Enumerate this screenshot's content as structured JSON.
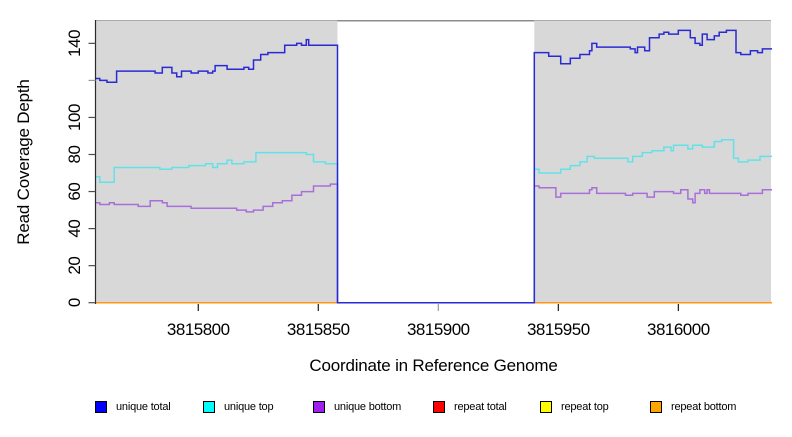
{
  "chart_data": {
    "type": "line",
    "line_style": "step",
    "title": "",
    "xlabel": "Coordinate in Reference Genome",
    "ylabel": "Read Coverage Depth",
    "xlim": [
      3815757,
      3816039
    ],
    "ylim": [
      0,
      153
    ],
    "grid": "off",
    "background": {
      "panel": "#d8d8d8",
      "outer": "#ffffff",
      "panel_top_border": "#aaaaaa",
      "axis_color": "#2b2b2b"
    },
    "no_data_region": {
      "x_start": 3815858,
      "x_end": 3815940,
      "fill": "#ffffff",
      "top_border_color": "#8c8c8c"
    },
    "x_ticks": [
      {
        "value": 3815800,
        "label": "3815800",
        "tick_color": "#1a1a1a"
      },
      {
        "value": 3815850,
        "label": "3815850",
        "tick_color": "#1a1a1a"
      },
      {
        "value": 3815900,
        "label": "3815900",
        "tick_color": "#9a9a9a"
      },
      {
        "value": 3815950,
        "label": "3815950",
        "tick_color": "#1a1a1a"
      },
      {
        "value": 3816000,
        "label": "3816000",
        "tick_color": "#1a1a1a"
      }
    ],
    "y_ticks": [
      {
        "value": 0,
        "label": "0",
        "tick_color": "#4d4d4d"
      },
      {
        "value": 20,
        "label": "20",
        "tick_color": "#4d4d4d"
      },
      {
        "value": 40,
        "label": "40",
        "tick_color": "#4d4d4d"
      },
      {
        "value": 60,
        "label": "60",
        "tick_color": "#4d4d4d"
      },
      {
        "value": 80,
        "label": "80",
        "tick_color": "#4d4d4d"
      },
      {
        "value": 100,
        "label": "100",
        "tick_color": "#4d4d4d"
      },
      {
        "value": 120,
        "label": "",
        "tick_color": "#9a9a9a"
      },
      {
        "value": 140,
        "label": "140",
        "tick_color": "#4d4d4d"
      }
    ],
    "series": [
      {
        "name": "repeat total",
        "key": "repeat-total",
        "line_color": "#ff0000",
        "layer": "under",
        "points": [
          [
            3815757,
            0
          ],
          [
            3816039,
            0
          ]
        ]
      },
      {
        "name": "repeat top",
        "key": "repeat-top",
        "line_color": "#ffff00",
        "layer": "under",
        "points": [
          [
            3815757,
            0
          ],
          [
            3816039,
            0
          ]
        ]
      },
      {
        "name": "repeat bottom",
        "key": "repeat-bottom",
        "line_color": "#ff9715",
        "layer": "under",
        "points": [
          [
            3815757,
            0
          ],
          [
            3816039,
            0
          ]
        ]
      },
      {
        "name": "unique top",
        "key": "unique-top",
        "line_color": "#62e2e8",
        "layer": "over",
        "points": [
          [
            3815757,
            68
          ],
          [
            3815759,
            65
          ],
          [
            3815765,
            73
          ],
          [
            3815784,
            72
          ],
          [
            3815789,
            73
          ],
          [
            3815796,
            74
          ],
          [
            3815803,
            75
          ],
          [
            3815806,
            73
          ],
          [
            3815808,
            75
          ],
          [
            3815812,
            77
          ],
          [
            3815814,
            75
          ],
          [
            3815819,
            76
          ],
          [
            3815824,
            81
          ],
          [
            3815845,
            80
          ],
          [
            3815848,
            76
          ],
          [
            3815853,
            75
          ],
          [
            3815858,
            0
          ],
          [
            3815940,
            72
          ],
          [
            3815942,
            70
          ],
          [
            3815951,
            72
          ],
          [
            3815955,
            74
          ],
          [
            3815959,
            76
          ],
          [
            3815962,
            79
          ],
          [
            3815965,
            78
          ],
          [
            3815979,
            76
          ],
          [
            3815981,
            79
          ],
          [
            3815985,
            81
          ],
          [
            3815989,
            82
          ],
          [
            3815994,
            84
          ],
          [
            3815997,
            82
          ],
          [
            3815998,
            85
          ],
          [
            3816004,
            83
          ],
          [
            3816006,
            85
          ],
          [
            3816010,
            84
          ],
          [
            3816015,
            87
          ],
          [
            3816018,
            88
          ],
          [
            3816023,
            78
          ],
          [
            3816025,
            76
          ],
          [
            3816029,
            77
          ],
          [
            3816034,
            79
          ],
          [
            3816039,
            79
          ]
        ]
      },
      {
        "name": "unique bottom",
        "key": "unique-bottom",
        "line_color": "#a96fd9",
        "layer": "over",
        "points": [
          [
            3815757,
            54
          ],
          [
            3815759,
            53
          ],
          [
            3815763,
            54
          ],
          [
            3815765,
            53
          ],
          [
            3815775,
            52
          ],
          [
            3815780,
            55
          ],
          [
            3815785,
            54
          ],
          [
            3815787,
            52
          ],
          [
            3815797,
            51
          ],
          [
            3815816,
            50
          ],
          [
            3815820,
            49
          ],
          [
            3815823,
            50
          ],
          [
            3815827,
            52
          ],
          [
            3815831,
            54
          ],
          [
            3815835,
            55
          ],
          [
            3815839,
            58
          ],
          [
            3815843,
            60
          ],
          [
            3815848,
            63
          ],
          [
            3815855,
            64
          ],
          [
            3815858,
            0
          ],
          [
            3815940,
            63
          ],
          [
            3815942,
            62
          ],
          [
            3815949,
            57
          ],
          [
            3815951,
            59
          ],
          [
            3815963,
            61
          ],
          [
            3815964,
            62
          ],
          [
            3815966,
            59
          ],
          [
            3815978,
            58
          ],
          [
            3815981,
            59
          ],
          [
            3815987,
            57
          ],
          [
            3815990,
            60
          ],
          [
            3815998,
            59
          ],
          [
            3816001,
            61
          ],
          [
            3816004,
            56
          ],
          [
            3816006,
            54
          ],
          [
            3816007,
            59
          ],
          [
            3816009,
            61
          ],
          [
            3816011,
            59
          ],
          [
            3816012,
            61
          ],
          [
            3816013,
            59
          ],
          [
            3816026,
            58
          ],
          [
            3816029,
            59
          ],
          [
            3816035,
            61
          ],
          [
            3816039,
            61
          ]
        ]
      },
      {
        "name": "unique total",
        "key": "unique-total",
        "line_color": "#2a2ad4",
        "layer": "over",
        "points": [
          [
            3815757,
            121
          ],
          [
            3815759,
            120
          ],
          [
            3815762,
            119
          ],
          [
            3815766,
            125
          ],
          [
            3815782,
            124
          ],
          [
            3815785,
            127
          ],
          [
            3815789,
            124
          ],
          [
            3815791,
            122
          ],
          [
            3815793,
            125
          ],
          [
            3815797,
            124
          ],
          [
            3815800,
            125
          ],
          [
            3815804,
            124
          ],
          [
            3815806,
            125
          ],
          [
            3815807,
            128
          ],
          [
            3815812,
            126
          ],
          [
            3815819,
            127
          ],
          [
            3815821,
            126
          ],
          [
            3815823,
            131
          ],
          [
            3815826,
            134
          ],
          [
            3815829,
            135
          ],
          [
            3815836,
            139
          ],
          [
            3815841,
            140
          ],
          [
            3815843,
            139
          ],
          [
            3815845,
            142
          ],
          [
            3815846,
            139
          ],
          [
            3815858,
            0
          ],
          [
            3815940,
            135
          ],
          [
            3815946,
            133
          ],
          [
            3815951,
            129
          ],
          [
            3815955,
            132
          ],
          [
            3815959,
            134
          ],
          [
            3815963,
            136
          ],
          [
            3815964,
            140
          ],
          [
            3815966,
            138
          ],
          [
            3815980,
            137
          ],
          [
            3815982,
            135
          ],
          [
            3815983,
            138
          ],
          [
            3815986,
            136
          ],
          [
            3815988,
            143
          ],
          [
            3815992,
            145
          ],
          [
            3815994,
            146
          ],
          [
            3815996,
            145
          ],
          [
            3816000,
            147
          ],
          [
            3816005,
            143
          ],
          [
            3816007,
            140
          ],
          [
            3816009,
            139
          ],
          [
            3816010,
            145
          ],
          [
            3816012,
            142
          ],
          [
            3816015,
            144
          ],
          [
            3816017,
            146
          ],
          [
            3816020,
            147
          ],
          [
            3816024,
            135
          ],
          [
            3816026,
            134
          ],
          [
            3816030,
            136
          ],
          [
            3816033,
            135
          ],
          [
            3816035,
            137
          ],
          [
            3816039,
            137
          ]
        ]
      }
    ],
    "legend": [
      {
        "label": "unique total",
        "color": "#0000ff"
      },
      {
        "label": "unique top",
        "color": "#00ffff"
      },
      {
        "label": "unique bottom",
        "color": "#a020f0"
      },
      {
        "label": "repeat total",
        "color": "#ff0000"
      },
      {
        "label": "repeat top",
        "color": "#ffff00"
      },
      {
        "label": "repeat bottom",
        "color": "#ffa500"
      }
    ],
    "legend_position": "bottom"
  }
}
